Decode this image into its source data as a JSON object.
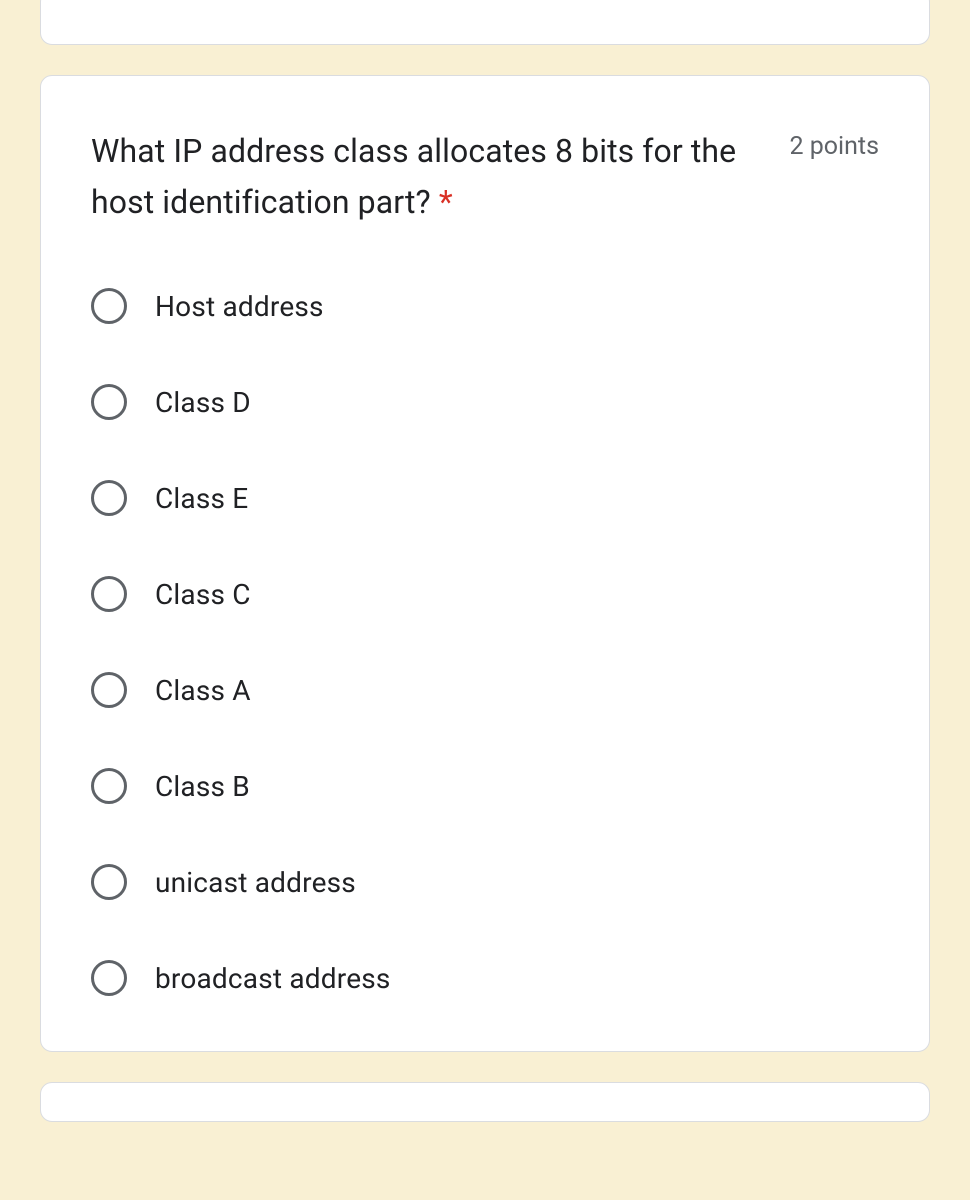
{
  "question": {
    "text": "What IP address class allocates 8 bits for the host identification part?",
    "required_marker": "*",
    "points_label": "2 points"
  },
  "options": [
    {
      "label": "Host address"
    },
    {
      "label": "Class D"
    },
    {
      "label": "Class E"
    },
    {
      "label": "Class C"
    },
    {
      "label": "Class A"
    },
    {
      "label": "Class B"
    },
    {
      "label": "unicast address"
    },
    {
      "label": "broadcast address"
    }
  ],
  "colors": {
    "background": "#f9f0d3",
    "card_background": "#ffffff",
    "card_border": "#dadce0",
    "text_primary": "#202124",
    "text_secondary": "#5f6368",
    "required": "#d93025",
    "radio_border": "#5f6368"
  }
}
